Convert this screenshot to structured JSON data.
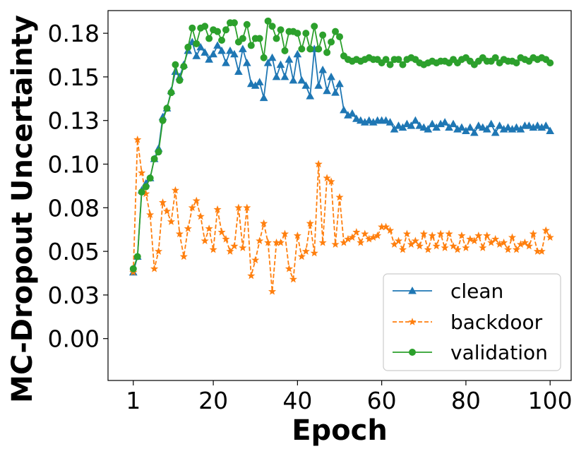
{
  "chart_data": {
    "type": "line",
    "xlabel": "Epoch",
    "ylabel": "MC-Dropout Uncertainty",
    "xlim": [
      -5,
      105
    ],
    "ylim": [
      -0.024,
      0.188
    ],
    "xticks": [
      1,
      20,
      40,
      60,
      80,
      100
    ],
    "xtick_labels": [
      "1",
      "20",
      "40",
      "60",
      "80",
      "100"
    ],
    "yticks": [
      0.0,
      0.025,
      0.05,
      0.075,
      0.1,
      0.125,
      0.15,
      0.175
    ],
    "ytick_labels": [
      "0.00",
      "0.03",
      "0.05",
      "0.08",
      "0.10",
      "0.13",
      "0.15",
      "0.18"
    ],
    "legend_position": "lower-right",
    "grid": false,
    "x": [
      1,
      2,
      3,
      4,
      5,
      6,
      7,
      8,
      9,
      10,
      11,
      12,
      13,
      14,
      15,
      16,
      17,
      18,
      19,
      20,
      21,
      22,
      23,
      24,
      25,
      26,
      27,
      28,
      29,
      30,
      31,
      32,
      33,
      34,
      35,
      36,
      37,
      38,
      39,
      40,
      41,
      42,
      43,
      44,
      45,
      46,
      47,
      48,
      49,
      50,
      51,
      52,
      53,
      54,
      55,
      56,
      57,
      58,
      59,
      60,
      61,
      62,
      63,
      64,
      65,
      66,
      67,
      68,
      69,
      70,
      71,
      72,
      73,
      74,
      75,
      76,
      77,
      78,
      79,
      80,
      81,
      82,
      83,
      84,
      85,
      86,
      87,
      88,
      89,
      90,
      91,
      92,
      93,
      94,
      95,
      96,
      97,
      98,
      99,
      100
    ],
    "series": [
      {
        "name": "clean",
        "color": "#1f77b4",
        "linestyle": "solid",
        "marker": "triangle",
        "values": [
          0.038,
          0.047,
          0.085,
          0.089,
          0.092,
          0.103,
          0.109,
          0.127,
          0.132,
          0.142,
          0.153,
          0.15,
          0.157,
          0.165,
          0.17,
          0.162,
          0.167,
          0.164,
          0.16,
          0.163,
          0.168,
          0.165,
          0.158,
          0.165,
          0.163,
          0.153,
          0.166,
          0.158,
          0.146,
          0.145,
          0.147,
          0.138,
          0.158,
          0.161,
          0.15,
          0.157,
          0.15,
          0.16,
          0.148,
          0.163,
          0.148,
          0.145,
          0.139,
          0.166,
          0.145,
          0.154,
          0.142,
          0.15,
          0.141,
          0.146,
          0.131,
          0.128,
          0.129,
          0.126,
          0.125,
          0.124,
          0.125,
          0.124,
          0.125,
          0.125,
          0.125,
          0.124,
          0.12,
          0.122,
          0.121,
          0.123,
          0.122,
          0.125,
          0.122,
          0.121,
          0.12,
          0.123,
          0.121,
          0.123,
          0.124,
          0.121,
          0.123,
          0.12,
          0.121,
          0.119,
          0.121,
          0.118,
          0.122,
          0.121,
          0.12,
          0.123,
          0.118,
          0.122,
          0.12,
          0.121,
          0.12,
          0.121,
          0.12,
          0.122,
          0.122,
          0.121,
          0.122,
          0.121,
          0.122,
          0.119
        ]
      },
      {
        "name": "backdoor",
        "color": "#ff7f0e",
        "linestyle": "dashed",
        "marker": "star",
        "values": [
          0.038,
          0.114,
          0.095,
          0.083,
          0.071,
          0.04,
          0.05,
          0.078,
          0.073,
          0.067,
          0.085,
          0.06,
          0.047,
          0.063,
          0.075,
          0.079,
          0.07,
          0.056,
          0.063,
          0.051,
          0.074,
          0.061,
          0.057,
          0.05,
          0.053,
          0.075,
          0.052,
          0.075,
          0.036,
          0.045,
          0.056,
          0.066,
          0.055,
          0.027,
          0.055,
          0.055,
          0.06,
          0.04,
          0.034,
          0.059,
          0.047,
          0.05,
          0.066,
          0.049,
          0.1,
          0.055,
          0.092,
          0.09,
          0.054,
          0.081,
          0.055,
          0.057,
          0.058,
          0.061,
          0.055,
          0.06,
          0.057,
          0.058,
          0.059,
          0.064,
          0.064,
          0.062,
          0.054,
          0.056,
          0.051,
          0.06,
          0.054,
          0.056,
          0.053,
          0.06,
          0.051,
          0.059,
          0.053,
          0.06,
          0.052,
          0.06,
          0.053,
          0.051,
          0.059,
          0.052,
          0.057,
          0.056,
          0.059,
          0.052,
          0.059,
          0.055,
          0.057,
          0.054,
          0.055,
          0.051,
          0.058,
          0.051,
          0.054,
          0.055,
          0.053,
          0.06,
          0.05,
          0.05,
          0.062,
          0.058
        ]
      },
      {
        "name": "validation",
        "color": "#2ca02c",
        "linestyle": "solid",
        "marker": "circle",
        "values": [
          0.04,
          0.047,
          0.084,
          0.087,
          0.092,
          0.103,
          0.107,
          0.125,
          0.132,
          0.141,
          0.157,
          0.148,
          0.156,
          0.167,
          0.178,
          0.169,
          0.178,
          0.179,
          0.172,
          0.177,
          0.176,
          0.171,
          0.177,
          0.181,
          0.181,
          0.17,
          0.172,
          0.18,
          0.168,
          0.172,
          0.172,
          0.161,
          0.182,
          0.179,
          0.172,
          0.177,
          0.165,
          0.176,
          0.176,
          0.175,
          0.166,
          0.175,
          0.166,
          0.179,
          0.166,
          0.174,
          0.164,
          0.17,
          0.176,
          0.173,
          0.162,
          0.16,
          0.159,
          0.16,
          0.159,
          0.16,
          0.161,
          0.16,
          0.16,
          0.158,
          0.16,
          0.157,
          0.16,
          0.16,
          0.157,
          0.16,
          0.161,
          0.16,
          0.158,
          0.157,
          0.158,
          0.159,
          0.158,
          0.159,
          0.159,
          0.158,
          0.16,
          0.158,
          0.16,
          0.161,
          0.159,
          0.157,
          0.159,
          0.161,
          0.159,
          0.159,
          0.161,
          0.158,
          0.16,
          0.159,
          0.159,
          0.158,
          0.161,
          0.16,
          0.159,
          0.161,
          0.16,
          0.161,
          0.16,
          0.158
        ]
      }
    ]
  }
}
